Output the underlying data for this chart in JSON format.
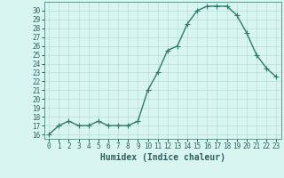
{
  "x": [
    0,
    1,
    2,
    3,
    4,
    5,
    6,
    7,
    8,
    9,
    10,
    11,
    12,
    13,
    14,
    15,
    16,
    17,
    18,
    19,
    20,
    21,
    22,
    23
  ],
  "y": [
    16,
    17,
    17.5,
    17,
    17,
    17.5,
    17,
    17,
    17,
    17.5,
    21,
    23,
    25.5,
    26,
    28.5,
    30,
    30.5,
    30.5,
    30.5,
    29.5,
    27.5,
    25,
    23.5,
    22.5
  ],
  "line_color": "#2d7a6e",
  "marker_color": "#2d7a6e",
  "bg_color": "#d8f5f0",
  "grid_color": "#b8ddd8",
  "xlabel": "Humidex (Indice chaleur)",
  "xlim": [
    -0.5,
    23.5
  ],
  "ylim": [
    15.5,
    31
  ],
  "yticks": [
    16,
    17,
    18,
    19,
    20,
    21,
    22,
    23,
    24,
    25,
    26,
    27,
    28,
    29,
    30
  ],
  "xticks": [
    0,
    1,
    2,
    3,
    4,
    5,
    6,
    7,
    8,
    9,
    10,
    11,
    12,
    13,
    14,
    15,
    16,
    17,
    18,
    19,
    20,
    21,
    22,
    23
  ],
  "tick_fontsize": 5.5,
  "xlabel_fontsize": 7,
  "marker_size": 2.5,
  "line_width": 1.0
}
